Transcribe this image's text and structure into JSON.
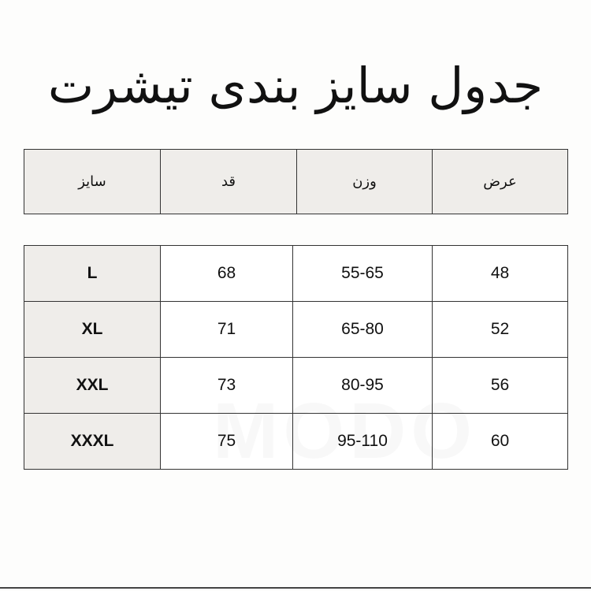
{
  "title": "جدول سایز بندی تیشرت",
  "headers": [
    "سایز",
    "قد",
    "وزن",
    "عرض"
  ],
  "rows": [
    {
      "size": "L",
      "height": "68",
      "weight": "55-65",
      "width": "48"
    },
    {
      "size": "XL",
      "height": "71",
      "weight": "65-80",
      "width": "52"
    },
    {
      "size": "XXL",
      "height": "73",
      "weight": "80-95",
      "width": "56"
    },
    {
      "size": "XXXL",
      "height": "75",
      "weight": "95-110",
      "width": "60"
    }
  ],
  "watermark": "MODO",
  "colors": {
    "header_bg": "#efedea",
    "border": "#333333",
    "background": "#fdfdfc"
  }
}
